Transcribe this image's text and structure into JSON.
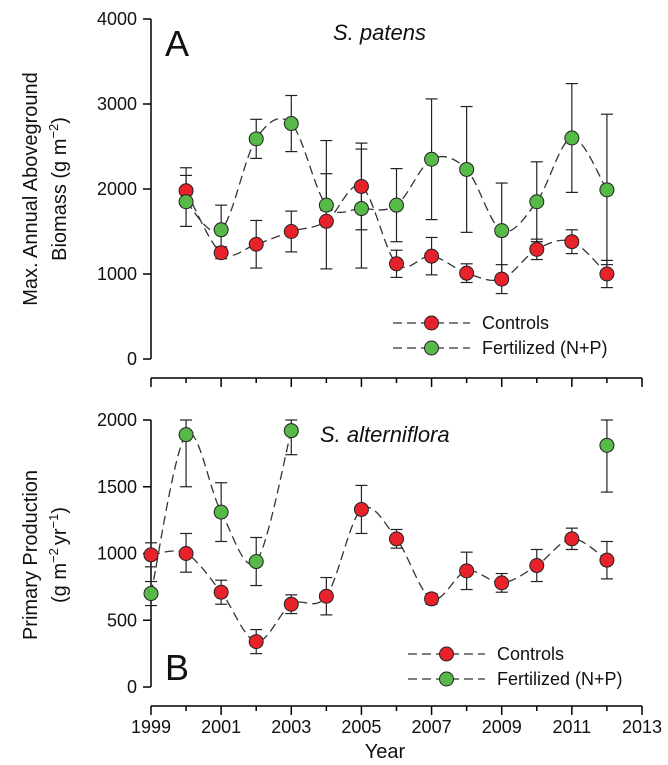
{
  "chart_data": [
    {
      "type": "line",
      "panel_letter": "A",
      "species": "S. patens",
      "ylabel_lines": [
        "Max. Annual Aboveground",
        "Biomass (g m",
        "−2",
        ")"
      ],
      "xlim": [
        1999,
        2013
      ],
      "ylim": [
        0,
        4000
      ],
      "yticks": [
        0,
        1000,
        2000,
        3000,
        4000
      ],
      "ytick_labels": [
        "0",
        "1000",
        "2000",
        "3000",
        "4000"
      ],
      "legend": {
        "position": "bottom-right",
        "entries": [
          "Controls",
          "Fertilized (N+P)"
        ]
      },
      "series": [
        {
          "name": "Controls",
          "color": "#e8222a",
          "x": [
            2000,
            2001,
            2002,
            2003,
            2004,
            2005,
            2006,
            2007,
            2008,
            2009,
            2010,
            2011,
            2012
          ],
          "y": [
            1980,
            1250,
            1350,
            1500,
            1620,
            2030,
            1120,
            1210,
            1010,
            940,
            1290,
            1380,
            1000
          ],
          "err_lo": [
            1800,
            1180,
            1070,
            1260,
            1060,
            1520,
            960,
            990,
            900,
            770,
            1170,
            1240,
            840
          ],
          "err_hi": [
            2160,
            1320,
            1630,
            1740,
            2180,
            2540,
            1280,
            1430,
            1120,
            1110,
            1410,
            1520,
            1160
          ]
        },
        {
          "name": "Fertilized (N+P)",
          "color": "#57b947",
          "x": [
            2000,
            2001,
            2002,
            2003,
            2004,
            2005,
            2006,
            2007,
            2008,
            2009,
            2010,
            2011,
            2012
          ],
          "y": [
            1850,
            1520,
            2590,
            2770,
            1810,
            1770,
            1810,
            2350,
            2230,
            1510,
            1850,
            2600,
            1990
          ],
          "err_lo": [
            1560,
            1240,
            2360,
            2440,
            1750,
            1070,
            1380,
            1640,
            1490,
            940,
            1380,
            1960,
            1110
          ],
          "err_hi": [
            2250,
            1810,
            2820,
            3100,
            2570,
            2470,
            2240,
            3060,
            2970,
            2070,
            2320,
            3240,
            2880
          ]
        }
      ]
    },
    {
      "type": "line",
      "panel_letter": "B",
      "species": "S. alterniflora",
      "ylabel_lines": [
        "Primary Production",
        "(g m",
        "−2",
        "yr",
        "−1",
        ")"
      ],
      "xlabel": "Year",
      "xlim": [
        1999,
        2013
      ],
      "ylim": [
        0,
        2000
      ],
      "xticks": [
        1999,
        2001,
        2003,
        2005,
        2007,
        2009,
        2011,
        2013
      ],
      "xtick_labels": [
        "1999",
        "2001",
        "2003",
        "2005",
        "2007",
        "2009",
        "2011",
        "2013"
      ],
      "yticks": [
        0,
        500,
        1000,
        1500,
        2000
      ],
      "ytick_labels": [
        "0",
        "500",
        "1000",
        "1500",
        "2000"
      ],
      "legend": {
        "position": "bottom-right",
        "entries": [
          "Controls",
          "Fertilized (N+P)"
        ]
      },
      "series": [
        {
          "name": "Controls",
          "color": "#e8222a",
          "x": [
            1999,
            2000,
            2001,
            2002,
            2003,
            2004,
            2005,
            2006,
            2007,
            2008,
            2009,
            2010,
            2011,
            2012
          ],
          "y": [
            990,
            1000,
            710,
            340,
            620,
            680,
            1330,
            1110,
            660,
            870,
            780,
            910,
            1110,
            950
          ],
          "err_lo": [
            900,
            860,
            620,
            250,
            550,
            540,
            1150,
            1040,
            620,
            730,
            710,
            790,
            1030,
            810
          ],
          "err_hi": [
            1080,
            1150,
            800,
            430,
            690,
            820,
            1510,
            1180,
            700,
            1010,
            850,
            1030,
            1190,
            1090
          ]
        },
        {
          "name": "Fertilized (N+P)",
          "color": "#57b947",
          "x": [
            1999,
            2000,
            2001,
            2002,
            2003,
            2012
          ],
          "y": [
            700,
            1890,
            1310,
            940,
            1920,
            1810
          ],
          "err_lo": [
            610,
            1500,
            1090,
            760,
            1740,
            1460
          ],
          "err_hi": [
            790,
            2000,
            1530,
            1120,
            2000,
            2000
          ],
          "segments": [
            [
              1999,
              2000,
              2001,
              2002,
              2003
            ]
          ]
        }
      ]
    }
  ]
}
